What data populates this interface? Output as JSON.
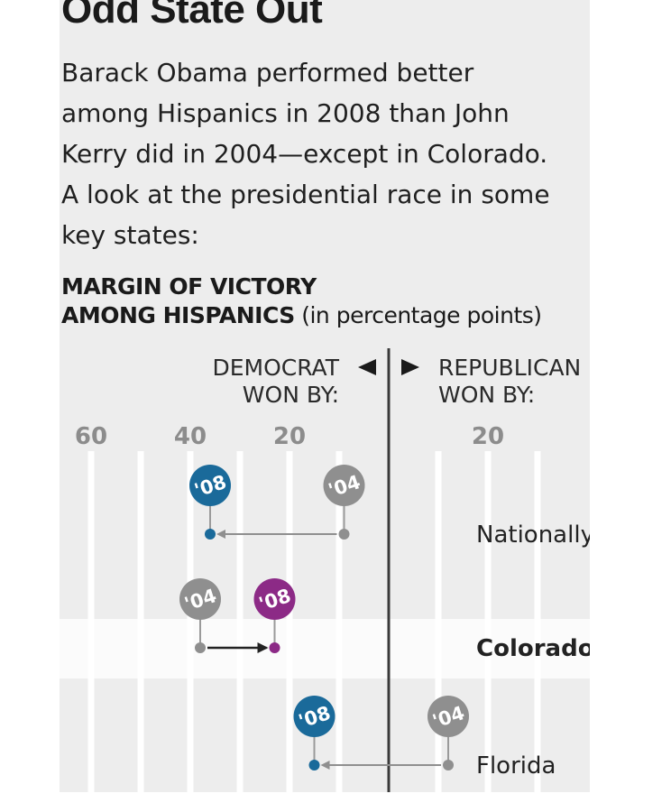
{
  "title": "Odd State Out",
  "intro": "Barack Obama performed better\namong Hispanics in 2008 than John\nKerry did in 2004—except in Colorado.\nA look at the presidential race in some\nkey states:",
  "subhead": {
    "line1": "MARGIN OF VICTORY",
    "line2_bold": "AMONG HISPANICS",
    "line2_rest": " (in percentage points)"
  },
  "chart_data": {
    "type": "dot",
    "title": "MARGIN OF VICTORY AMONG HISPANICS",
    "units": "percentage points",
    "left_label": [
      "DEMOCRAT",
      "WON BY:"
    ],
    "right_label": [
      "REPUBLICAN",
      "WON BY:"
    ],
    "x_ticks": [
      {
        "value": -60,
        "label": "60"
      },
      {
        "value": -40,
        "label": "40"
      },
      {
        "value": -20,
        "label": "20"
      },
      {
        "value": 20,
        "label": "20"
      }
    ],
    "xlim": [
      -66,
      40
    ],
    "grid": true,
    "series": [
      {
        "name": "'04",
        "year": 2004,
        "color": "#8f8f8f"
      },
      {
        "name": "'08",
        "year": 2008,
        "color": "#1a6a9a",
        "alt_color": "#8c2a86"
      }
    ],
    "states": [
      {
        "name": "Nationally",
        "bold": false,
        "shaded": false,
        "d04": -9,
        "d08": -36,
        "color08": "#1a6a9a"
      },
      {
        "name": "Colorado",
        "bold": true,
        "shaded": true,
        "d04": -38,
        "d08": -23,
        "color08": "#8c2a86"
      },
      {
        "name": "Florida",
        "bold": false,
        "shaded": false,
        "d04": 12,
        "d08": -15,
        "color08": "#1a6a9a"
      }
    ]
  }
}
